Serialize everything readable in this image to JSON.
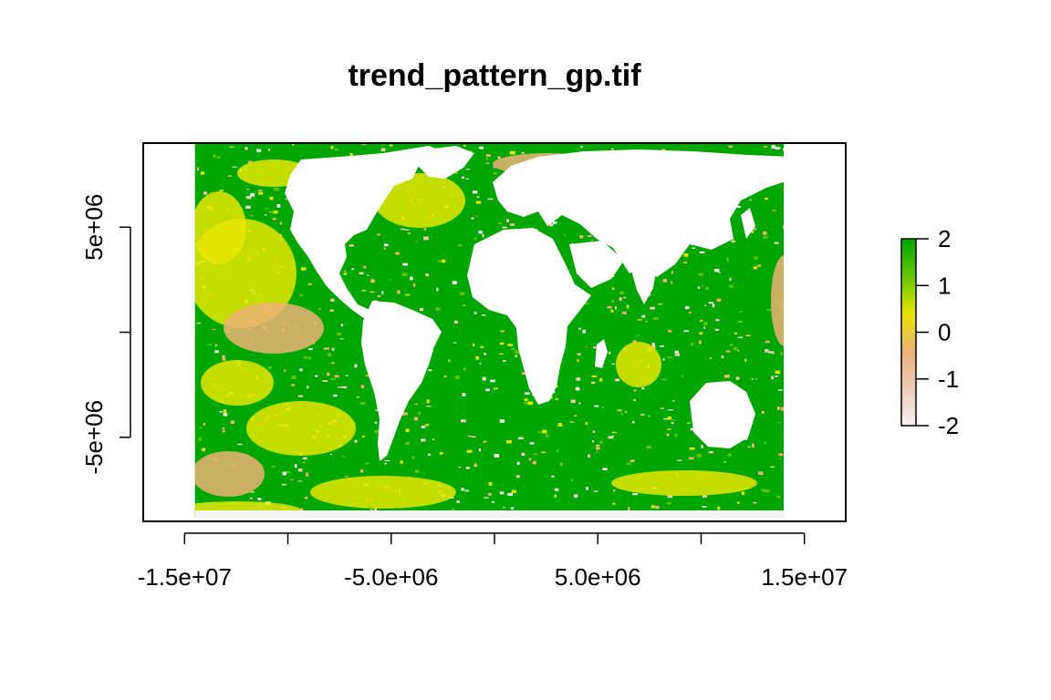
{
  "title": "trend_pattern_gp.tif",
  "map": {
    "x_axis": {
      "range": [
        -17000000,
        17000000
      ],
      "ticks": [
        -15000000,
        -10000000,
        -5000000,
        0,
        5000000,
        10000000,
        15000000
      ],
      "labeled_ticks": [
        -15000000,
        -5000000,
        5000000,
        15000000
      ],
      "tick_labels": [
        "-1.5e+07",
        "-5.0e+06",
        "5.0e+06",
        "1.5e+07"
      ]
    },
    "y_axis": {
      "range": [
        -9000000,
        9000000
      ],
      "ticks": [
        -5000000,
        0,
        5000000
      ],
      "labeled_ticks": [
        -5000000,
        5000000
      ],
      "tick_labels": [
        "-5e+06",
        "5e+06"
      ]
    },
    "raster_extent": {
      "xmin": -14500000,
      "xmax": 14000000,
      "ymin": -8800000,
      "ymax": 9000000
    },
    "land_color": "#ffffff",
    "ocean_dominant_color": "#00a600",
    "legend": {
      "placement": "right",
      "range": [
        -2,
        2
      ],
      "tick_values": [
        2,
        1,
        0,
        -1,
        -2
      ],
      "tick_labels": [
        "2",
        "1",
        "0",
        "-1",
        "-2"
      ],
      "colors": [
        "#f2f2f2",
        "#eec9b8",
        "#ecb176",
        "#e6e600",
        "#63c600",
        "#00a600"
      ]
    }
  }
}
